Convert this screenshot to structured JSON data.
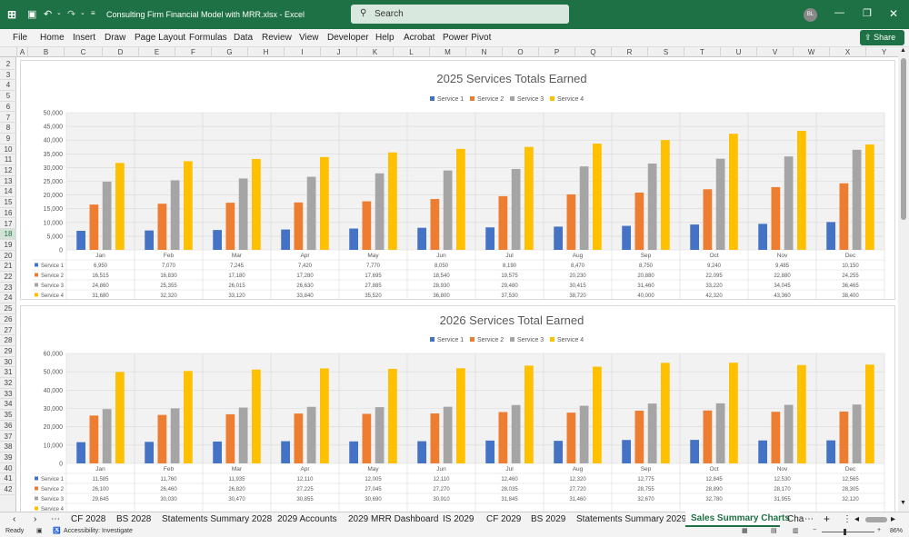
{
  "app": {
    "title": "Consulting Firm Financial Model with MRR.xlsx  -  Excel",
    "search_placeholder": "Search",
    "share_label": "Share",
    "user_initials": "BL"
  },
  "menu": [
    "File",
    "Home",
    "Insert",
    "Draw",
    "Page Layout",
    "Formulas",
    "Data",
    "Review",
    "View",
    "Developer",
    "Help",
    "Acrobat",
    "Power Pivot"
  ],
  "columns": [
    "A",
    "B",
    "C",
    "D",
    "E",
    "F",
    "G",
    "H",
    "I",
    "J",
    "K",
    "L",
    "M",
    "N",
    "O",
    "P",
    "Q",
    "R",
    "S",
    "T",
    "U",
    "V",
    "W",
    "X",
    "Y"
  ],
  "rows": [
    "2",
    "3",
    "4",
    "5",
    "6",
    "7",
    "8",
    "9",
    "10",
    "11",
    "12",
    "13",
    "14",
    "15",
    "16",
    "17",
    "18",
    "19",
    "20",
    "21",
    "22",
    "23",
    "24",
    "25",
    "26",
    "27",
    "28",
    "29",
    "30",
    "31",
    "32",
    "33",
    "34",
    "35",
    "36",
    "37",
    "38",
    "39",
    "40",
    "41",
    "42"
  ],
  "tabs": [
    "CF 2028",
    "BS 2028",
    "Statements Summary 2028",
    "2029 Accounts",
    "2029 MRR Dashboard",
    "IS 2029",
    "CF 2029",
    "BS 2029",
    "Statements Summary 2029",
    "Sales Summary Charts",
    "Cha"
  ],
  "active_tab": "Sales Summary Charts",
  "status": {
    "ready": "Ready",
    "accessibility": "Accessibility: Investigate",
    "zoom": "86%"
  },
  "colors": {
    "excel_green": "#1e7145",
    "s1": "#4472c4",
    "s2": "#ed7d31",
    "s3": "#a5a5a5",
    "s4": "#ffc000"
  },
  "chart_data": [
    {
      "type": "bar",
      "title": "2025 Services Totals Earned",
      "categories": [
        "Jan",
        "Feb",
        "Mar",
        "Apr",
        "May",
        "Jun",
        "Jul",
        "Aug",
        "Sep",
        "Oct",
        "Nov",
        "Dec"
      ],
      "ylim": [
        0,
        50000
      ],
      "ytick_labels": [
        "0",
        "5,000",
        "10,000",
        "15,000",
        "20,000",
        "25,000",
        "30,000",
        "35,000",
        "40,000",
        "45,000",
        "50,000"
      ],
      "legend": "top-center",
      "grid": true,
      "series": [
        {
          "name": "Service 1",
          "values": [
            6950,
            7070,
            7245,
            7420,
            7770,
            8050,
            8190,
            8470,
            8750,
            9240,
            9485,
            10150
          ],
          "labels": [
            "6,950",
            "7,070",
            "7,245",
            "7,420",
            "7,770",
            "8,050",
            "8,190",
            "8,470",
            "8,750",
            "9,240",
            "9,485",
            "10,150"
          ]
        },
        {
          "name": "Service 2",
          "values": [
            16515,
            16830,
            17180,
            17280,
            17695,
            18540,
            19575,
            20230,
            20880,
            22095,
            22880,
            24255
          ],
          "labels": [
            "16,515",
            "16,830",
            "17,180",
            "17,280",
            "17,695",
            "18,540",
            "19,575",
            "20,230",
            "20,880",
            "22,095",
            "22,880",
            "24,255"
          ]
        },
        {
          "name": "Service 3",
          "values": [
            24860,
            25355,
            26015,
            26630,
            27885,
            28930,
            29480,
            30415,
            31460,
            33220,
            34045,
            36465
          ],
          "labels": [
            "24,860",
            "25,355",
            "26,015",
            "26,630",
            "27,885",
            "28,930",
            "29,480",
            "30,415",
            "31,460",
            "33,220",
            "34,045",
            "36,465"
          ]
        },
        {
          "name": "Service 4",
          "values": [
            31680,
            32320,
            33120,
            33840,
            35520,
            36800,
            37530,
            38720,
            40000,
            42320,
            43360,
            38400
          ],
          "labels": [
            "31,680",
            "32,320",
            "33,120",
            "33,840",
            "35,520",
            "36,800",
            "37,530",
            "38,720",
            "40,000",
            "42,320",
            "43,360",
            "38,400"
          ]
        }
      ]
    },
    {
      "type": "bar",
      "title": "2026 Services Total Earned",
      "categories": [
        "Jan",
        "Feb",
        "Mar",
        "Apr",
        "May",
        "Jun",
        "Jul",
        "Aug",
        "Sep",
        "Oct",
        "Nov",
        "Dec"
      ],
      "ylim": [
        0,
        60000
      ],
      "ytick_labels": [
        "0",
        "10,000",
        "20,000",
        "30,000",
        "40,000",
        "50,000",
        "60,000"
      ],
      "legend": "top-center",
      "grid": true,
      "series": [
        {
          "name": "Service 1",
          "values": [
            11585,
            11760,
            11935,
            12110,
            12005,
            12110,
            12460,
            12320,
            12775,
            12845,
            12530,
            12565
          ],
          "labels": [
            "11,585",
            "11,760",
            "11,935",
            "12,110",
            "12,005",
            "12,110",
            "12,460",
            "12,320",
            "12,775",
            "12,845",
            "12,530",
            "12,565"
          ]
        },
        {
          "name": "Service 2",
          "values": [
            26100,
            26460,
            26820,
            27225,
            27045,
            27270,
            28035,
            27720,
            28755,
            28890,
            28170,
            28305
          ],
          "labels": [
            "26,100",
            "26,460",
            "26,820",
            "27,225",
            "27,045",
            "27,270",
            "28,035",
            "27,720",
            "28,755",
            "28,890",
            "28,170",
            "28,305"
          ]
        },
        {
          "name": "Service 3",
          "values": [
            29645,
            30030,
            30470,
            30855,
            30690,
            30910,
            31845,
            31460,
            32670,
            32780,
            31955,
            32120
          ],
          "labels": [
            "29,645",
            "30,030",
            "30,470",
            "30,855",
            "30,690",
            "30,910",
            "31,845",
            "31,460",
            "32,670",
            "32,780",
            "31,955",
            "32,120"
          ]
        },
        {
          "name": "Service 4",
          "values": [
            49880,
            50440,
            51200,
            51840,
            51600,
            51920,
            53360,
            52800,
            54880,
            54960,
            53680,
            53920
          ],
          "labels": []
        }
      ]
    }
  ]
}
